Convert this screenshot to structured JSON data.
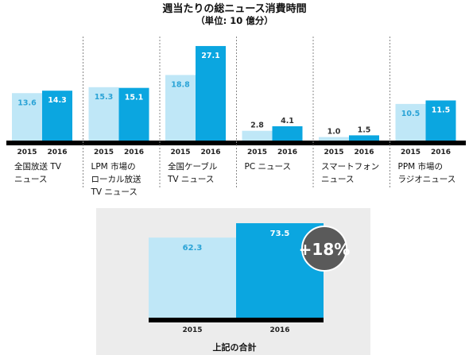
{
  "title": "週当たりの総ニュース消費時間",
  "subtitle": "（単位: 10 億分）",
  "colors": {
    "series_2015": "#bfe7f7",
    "series_2016": "#0ba6e0",
    "axis": "#000000",
    "badge_bg": "#5a5a5a",
    "badge_text": "#ffffff",
    "total_panel_bg": "#ececec",
    "divider": "#888888"
  },
  "chart_data": [
    {
      "type": "bar",
      "series_names": [
        "2015",
        "2016"
      ],
      "groups": [
        {
          "label_lines": [
            "全国放送 TV",
            "ニュース"
          ],
          "values": [
            13.6,
            14.3
          ],
          "year_labels": [
            "2015",
            "2016"
          ]
        },
        {
          "label_lines": [
            "LPM 市場の",
            "ローカル放送",
            "TV ニュース"
          ],
          "values": [
            15.3,
            15.1
          ],
          "year_labels": [
            "2015",
            "2016"
          ]
        },
        {
          "label_lines": [
            "全国ケーブル",
            "TV ニュース"
          ],
          "values": [
            18.8,
            27.1
          ],
          "year_labels": [
            "2015",
            "2016"
          ]
        },
        {
          "label_lines": [
            "PC ニュース"
          ],
          "values": [
            2.8,
            4.1
          ],
          "year_labels": [
            "2015",
            "2016"
          ]
        },
        {
          "label_lines": [
            "スマートフォン",
            "ニュース"
          ],
          "values": [
            1.0,
            1.5
          ],
          "year_labels": [
            "2015",
            "2016"
          ]
        },
        {
          "label_lines": [
            "PPM 市場の",
            "ラジオニュース"
          ],
          "values": [
            10.5,
            11.5
          ],
          "year_labels": [
            "2015",
            "2016"
          ]
        }
      ],
      "ylim": [
        0,
        28
      ],
      "grid": false,
      "legend": "none"
    },
    {
      "type": "bar",
      "categories": [
        "2015",
        "2016"
      ],
      "values": [
        62.3,
        73.5
      ],
      "ylim": [
        0,
        76
      ],
      "caption": "上記の合計",
      "badge": "+18%"
    }
  ]
}
